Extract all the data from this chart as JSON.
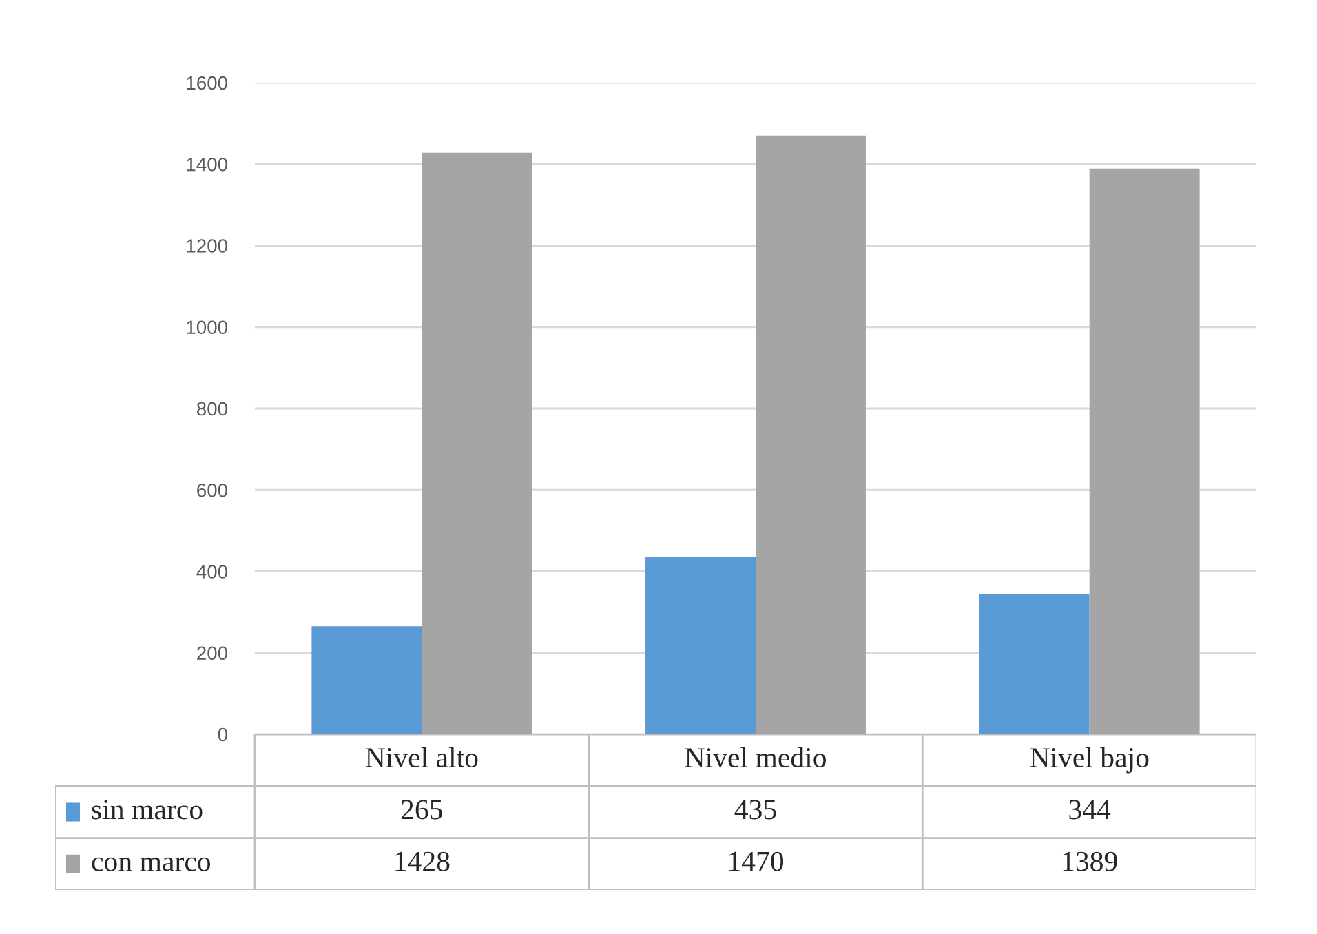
{
  "chart_data": {
    "type": "bar",
    "categories": [
      "Nivel alto",
      "Nivel medio",
      "Nivel bajo"
    ],
    "series": [
      {
        "name": "sin marco",
        "color": "#5b9bd5",
        "values": [
          265,
          435,
          344
        ]
      },
      {
        "name": "con marco",
        "color": "#a5a5a5",
        "values": [
          1428,
          1470,
          1389
        ]
      }
    ],
    "ylim": [
      0,
      1600
    ],
    "yticks": [
      0,
      200,
      400,
      600,
      800,
      1000,
      1200,
      1400,
      1600
    ],
    "grid": "y",
    "legend": "bottom left",
    "data_labels": true
  }
}
